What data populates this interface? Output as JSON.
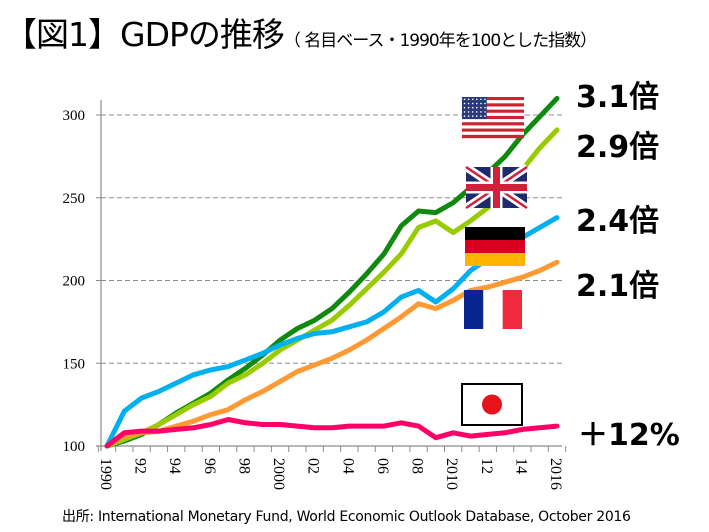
{
  "title": {
    "main": "【図1】GDPの推移",
    "sub": "（ 名目ベース・1990年を100とした指数）"
  },
  "source": "出所: International Monetary Fund,  World Economic Outlook Database, October 2016",
  "chart_data": {
    "type": "line",
    "title": "GDPの推移（名目ベース・1990年を100とした指数）",
    "xlabel": "",
    "ylabel": "",
    "ylim": [
      100,
      310
    ],
    "xlim": [
      1990,
      2016
    ],
    "grid": "horizontal dashed",
    "yticks": [
      100,
      150,
      200,
      250,
      300
    ],
    "xtick_labels": [
      {
        "year": 1990,
        "label": "1990"
      },
      {
        "year": 1992,
        "label": "92"
      },
      {
        "year": 1994,
        "label": "94"
      },
      {
        "year": 1996,
        "label": "96"
      },
      {
        "year": 1998,
        "label": "98"
      },
      {
        "year": 2000,
        "label": "2000"
      },
      {
        "year": 2002,
        "label": "02"
      },
      {
        "year": 2004,
        "label": "04"
      },
      {
        "year": 2006,
        "label": "06"
      },
      {
        "year": 2008,
        "label": "08"
      },
      {
        "year": 2010,
        "label": "2010"
      },
      {
        "year": 2012,
        "label": "12"
      },
      {
        "year": 2014,
        "label": "14"
      },
      {
        "year": 2016,
        "label": "2016"
      }
    ],
    "x": [
      1990,
      1991,
      1992,
      1993,
      1994,
      1995,
      1996,
      1997,
      1998,
      1999,
      2000,
      2001,
      2002,
      2003,
      2004,
      2005,
      2006,
      2007,
      2008,
      2009,
      2010,
      2011,
      2012,
      2013,
      2014,
      2015,
      2016
    ],
    "series": [
      {
        "name": "United States",
        "flag": "us",
        "color": "#0f8a0f",
        "annotation": "3.1倍",
        "values": [
          100,
          103,
          107,
          113,
          120,
          126,
          132,
          140,
          147,
          155,
          164,
          171,
          176,
          183,
          193,
          204,
          216,
          233,
          242,
          241,
          247,
          256,
          265,
          275,
          288,
          299,
          310
        ]
      },
      {
        "name": "United Kingdom",
        "flag": "uk",
        "color": "#99cc00",
        "annotation": "2.9倍",
        "values": [
          100,
          104,
          108,
          113,
          119,
          125,
          130,
          138,
          143,
          150,
          158,
          164,
          170,
          176,
          185,
          195,
          205,
          216,
          232,
          236,
          229,
          236,
          244,
          253,
          267,
          280,
          291
        ]
      },
      {
        "name": "Germany",
        "flag": "de",
        "color": "#00b0f0",
        "annotation": "2.4倍",
        "values": [
          100,
          121,
          129,
          133,
          138,
          143,
          146,
          148,
          152,
          156,
          161,
          165,
          168,
          169,
          172,
          175,
          181,
          190,
          194,
          187,
          195,
          206,
          213,
          218,
          226,
          232,
          238
        ]
      },
      {
        "name": "France",
        "flag": "fr",
        "color": "#ff9933",
        "annotation": "2.1倍",
        "values": [
          100,
          106,
          108,
          109,
          112,
          115,
          119,
          122,
          128,
          133,
          139,
          145,
          149,
          153,
          158,
          164,
          171,
          178,
          186,
          183,
          188,
          194,
          196,
          199,
          202,
          206,
          211
        ]
      },
      {
        "name": "Japan",
        "flag": "jp",
        "color": "#ff0066",
        "annotation": "＋12%",
        "values": [
          100,
          108,
          109,
          109,
          110,
          111,
          113,
          116,
          114,
          113,
          113,
          112,
          111,
          111,
          112,
          112,
          112,
          114,
          112,
          105,
          108,
          106,
          107,
          108,
          110,
          111,
          112
        ]
      }
    ]
  }
}
